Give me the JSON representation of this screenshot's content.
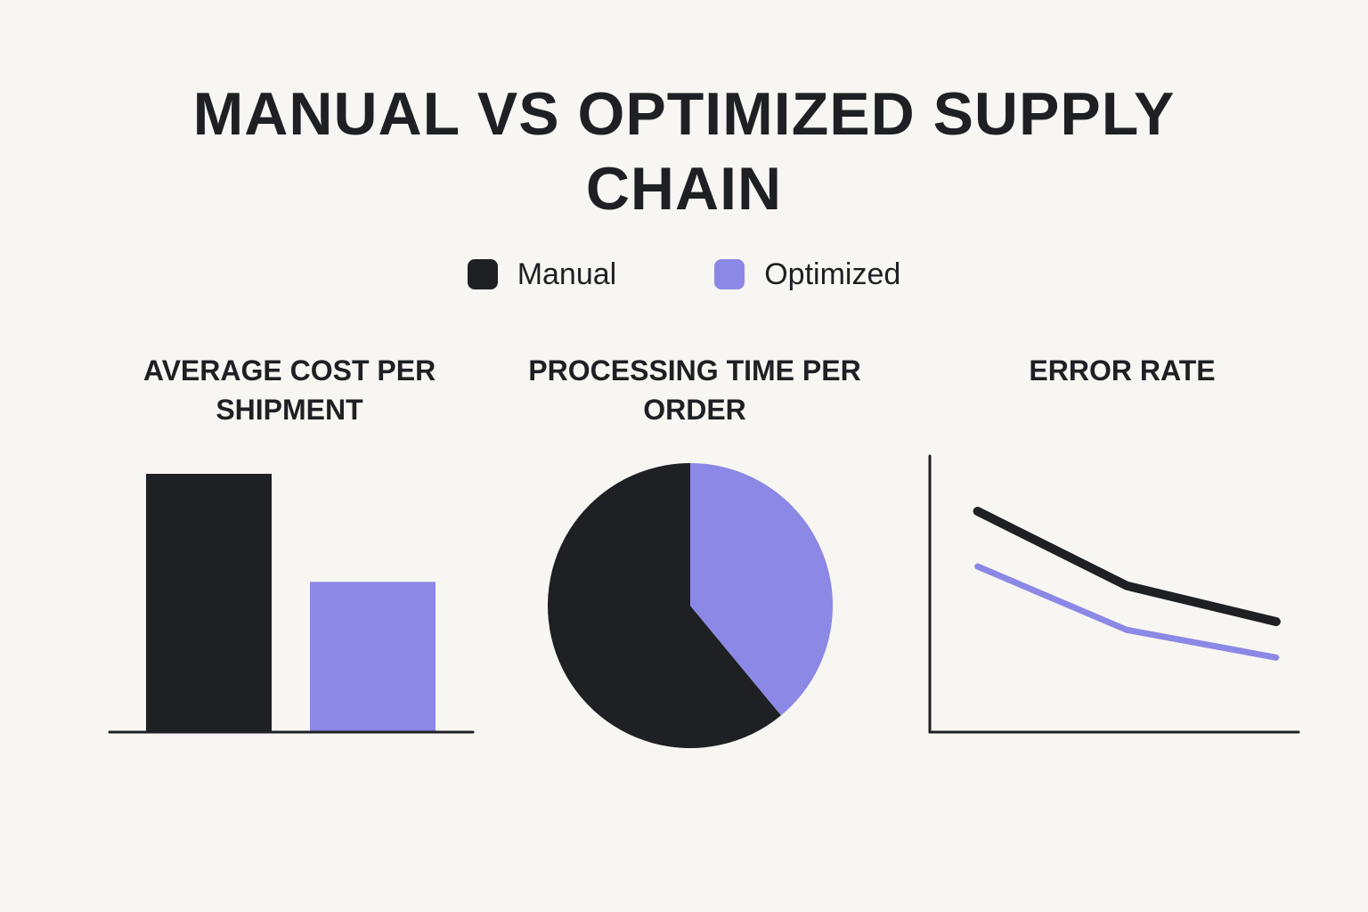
{
  "title": "MANUAL VS OPTIMIZED SUPPLY CHAIN",
  "colors": {
    "background": "#f7f6f2",
    "manual": "#1f2024",
    "optimized": "#8c88e6"
  },
  "legend": [
    {
      "label": "Manual",
      "color": "#1f2024"
    },
    {
      "label": "Optimized",
      "color": "#8c88e6"
    }
  ],
  "panel_titles": {
    "bar": "AVERAGE COST PER SHIPMENT",
    "pie": "PROCESSING TIME PER ORDER",
    "line": "ERROR RATE"
  },
  "chart_data": [
    {
      "type": "bar",
      "title": "AVERAGE COST PER SHIPMENT",
      "categories": [
        "",
        ""
      ],
      "values": [
        1.0,
        0.58
      ],
      "colors": [
        "#1f2024",
        "#8c88e6"
      ],
      "ylim": [
        0,
        1.0
      ],
      "grid": false,
      "axis_labels": false
    },
    {
      "type": "pie",
      "title": "PROCESSING TIME PER ORDER",
      "labels": [
        "",
        ""
      ],
      "values": [
        61,
        39
      ],
      "colors": [
        "#1f2024",
        "#8c88e6"
      ],
      "start_angle_deg": 0,
      "direction": "counterclockwise"
    },
    {
      "type": "line",
      "title": "ERROR RATE",
      "x": [
        0,
        1,
        2
      ],
      "series": [
        {
          "values": [
            0.8,
            0.53,
            0.4
          ],
          "color": "#1f2024"
        },
        {
          "values": [
            0.6,
            0.37,
            0.27
          ],
          "color": "#8c88e6"
        }
      ],
      "xlim": [
        -0.32,
        2.15
      ],
      "ylim": [
        0,
        1
      ],
      "grid": false,
      "axis_labels": false
    }
  ]
}
